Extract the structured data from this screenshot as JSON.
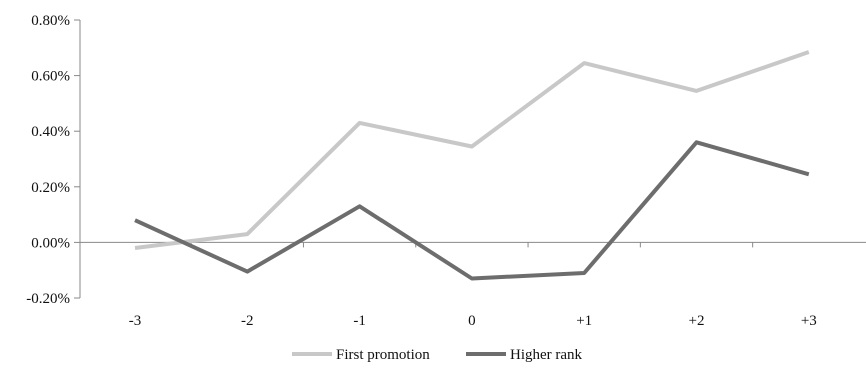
{
  "chart_data": {
    "type": "line",
    "categories": [
      "-3",
      "-2",
      "-1",
      "0",
      "+1",
      "+2",
      "+3"
    ],
    "y_ticks": [
      "0.80%",
      "0.60%",
      "0.40%",
      "0.20%",
      "0.00%",
      "-0.20%"
    ],
    "y_tick_values": [
      0.8,
      0.6,
      0.4,
      0.2,
      0.0,
      -0.2
    ],
    "ylim": [
      -0.2,
      0.8
    ],
    "y_unit": "%",
    "grid": false,
    "legend_position": "bottom",
    "series": [
      {
        "name": "First promotion",
        "color": "#c8c8c8",
        "values": [
          -0.02,
          0.03,
          0.43,
          0.345,
          0.645,
          0.545,
          0.685
        ]
      },
      {
        "name": "Higher rank",
        "color": "#6d6d6d",
        "values": [
          0.08,
          -0.105,
          0.13,
          -0.13,
          -0.11,
          0.36,
          0.245
        ]
      }
    ]
  }
}
